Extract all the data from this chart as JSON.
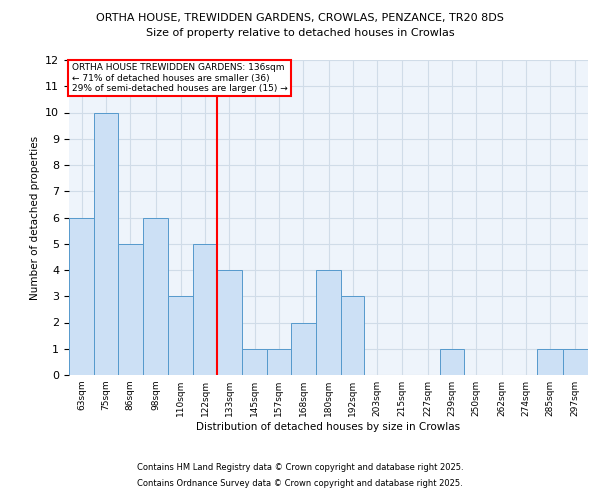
{
  "title_line1": "ORTHA HOUSE, TREWIDDEN GARDENS, CROWLAS, PENZANCE, TR20 8DS",
  "title_line2": "Size of property relative to detached houses in Crowlas",
  "xlabel": "Distribution of detached houses by size in Crowlas",
  "ylabel": "Number of detached properties",
  "bin_labels": [
    "63sqm",
    "75sqm",
    "86sqm",
    "98sqm",
    "110sqm",
    "122sqm",
    "133sqm",
    "145sqm",
    "157sqm",
    "168sqm",
    "180sqm",
    "192sqm",
    "203sqm",
    "215sqm",
    "227sqm",
    "239sqm",
    "250sqm",
    "262sqm",
    "274sqm",
    "285sqm",
    "297sqm"
  ],
  "bin_edges": [
    63,
    75,
    86,
    98,
    110,
    122,
    133,
    145,
    157,
    168,
    180,
    192,
    203,
    215,
    227,
    239,
    250,
    262,
    274,
    285,
    297
  ],
  "bar_heights": [
    6,
    10,
    5,
    6,
    3,
    5,
    4,
    1,
    1,
    2,
    4,
    3,
    0,
    0,
    0,
    1,
    0,
    0,
    0,
    1,
    1
  ],
  "bar_color": "#cce0f5",
  "bar_edge_color": "#5599cc",
  "red_line_x": 133,
  "ylim": [
    0,
    12
  ],
  "yticks": [
    0,
    1,
    2,
    3,
    4,
    5,
    6,
    7,
    8,
    9,
    10,
    11,
    12
  ],
  "annotation_title": "ORTHA HOUSE TREWIDDEN GARDENS: 136sqm",
  "annotation_line1": "← 71% of detached houses are smaller (36)",
  "annotation_line2": "29% of semi-detached houses are larger (15) →",
  "footer1": "Contains HM Land Registry data © Crown copyright and database right 2025.",
  "footer2": "Contains Ordnance Survey data © Crown copyright and database right 2025.",
  "background_color": "#eef4fb",
  "grid_color": "#d0dce8",
  "fig_bg": "#ffffff"
}
